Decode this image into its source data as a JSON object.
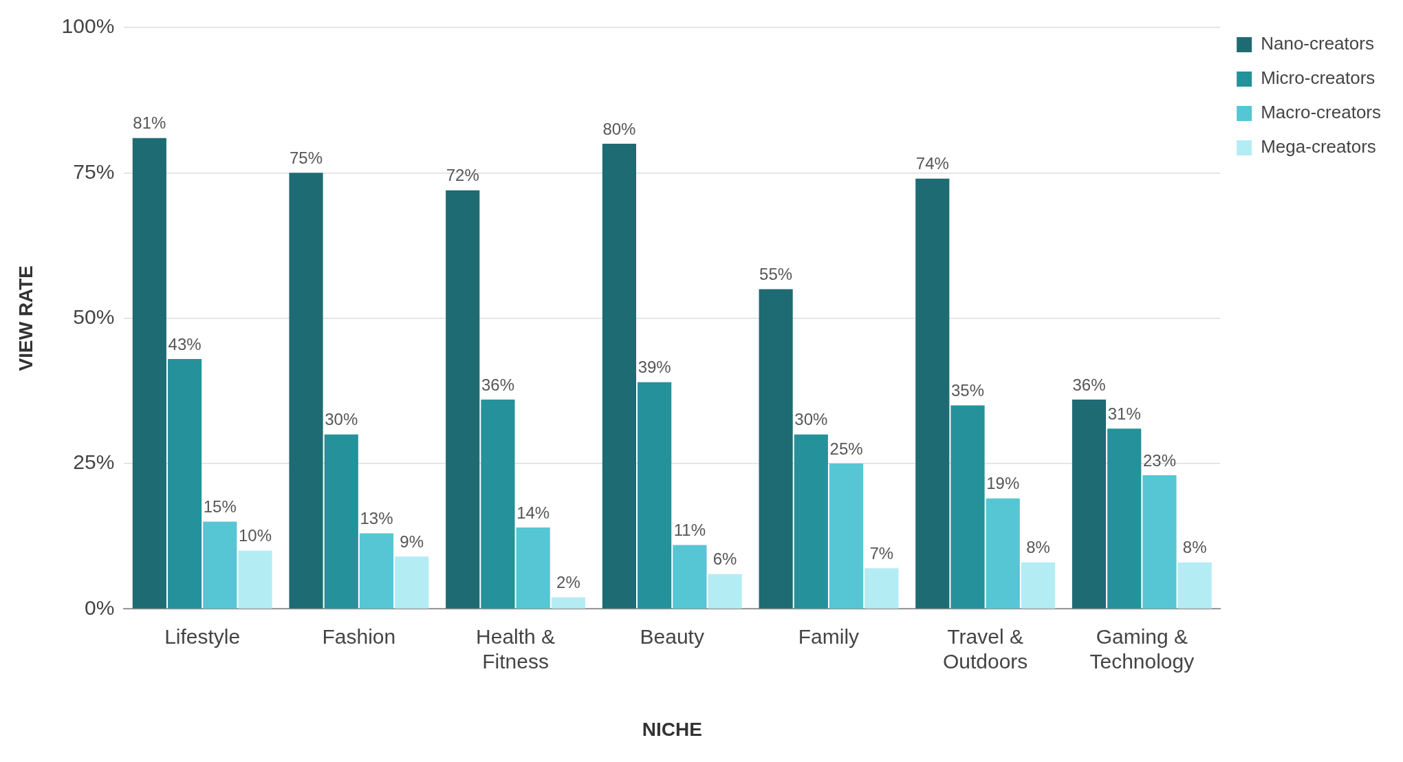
{
  "chart_data": {
    "type": "bar",
    "xlabel": "NICHE",
    "ylabel": "VIEW RATE",
    "categories": [
      "Lifestyle",
      "Fashion",
      "Health & Fitness",
      "Beauty",
      "Family",
      "Travel & Outdoors",
      "Gaming & Technology"
    ],
    "series": [
      {
        "name": "Nano-creators",
        "color": "#1e6b73",
        "values": [
          81,
          75,
          72,
          80,
          55,
          74,
          36
        ],
        "value_labels": [
          "81%",
          "75%",
          "72%",
          "80%",
          "55%",
          "74%",
          "36%"
        ]
      },
      {
        "name": "Micro-creators",
        "color": "#25919b",
        "values": [
          43,
          30,
          36,
          39,
          30,
          35,
          31
        ],
        "value_labels": [
          "43%",
          "30%",
          "36%",
          "39%",
          "30%",
          "35%",
          "31%"
        ]
      },
      {
        "name": "Macro-creators",
        "color": "#56c6d4",
        "values": [
          15,
          13,
          14,
          11,
          25,
          19,
          23
        ],
        "value_labels": [
          "15%",
          "13%",
          "14%",
          "11%",
          "25%",
          "19%",
          "23%"
        ]
      },
      {
        "name": "Mega-creators",
        "color": "#b4ecf4",
        "values": [
          10,
          9,
          2,
          6,
          7,
          8,
          8
        ],
        "value_labels": [
          "10%",
          "9%",
          "2%",
          "6%",
          "7%",
          "8%",
          "8%"
        ]
      }
    ],
    "ylim": [
      0,
      100
    ],
    "yticks": [
      {
        "value": 0,
        "label": "0%"
      },
      {
        "value": 25,
        "label": "25%"
      },
      {
        "value": 50,
        "label": "50%"
      },
      {
        "value": 75,
        "label": "75%"
      },
      {
        "value": 100,
        "label": "100%"
      }
    ],
    "grid": "y",
    "legend": "top right"
  }
}
